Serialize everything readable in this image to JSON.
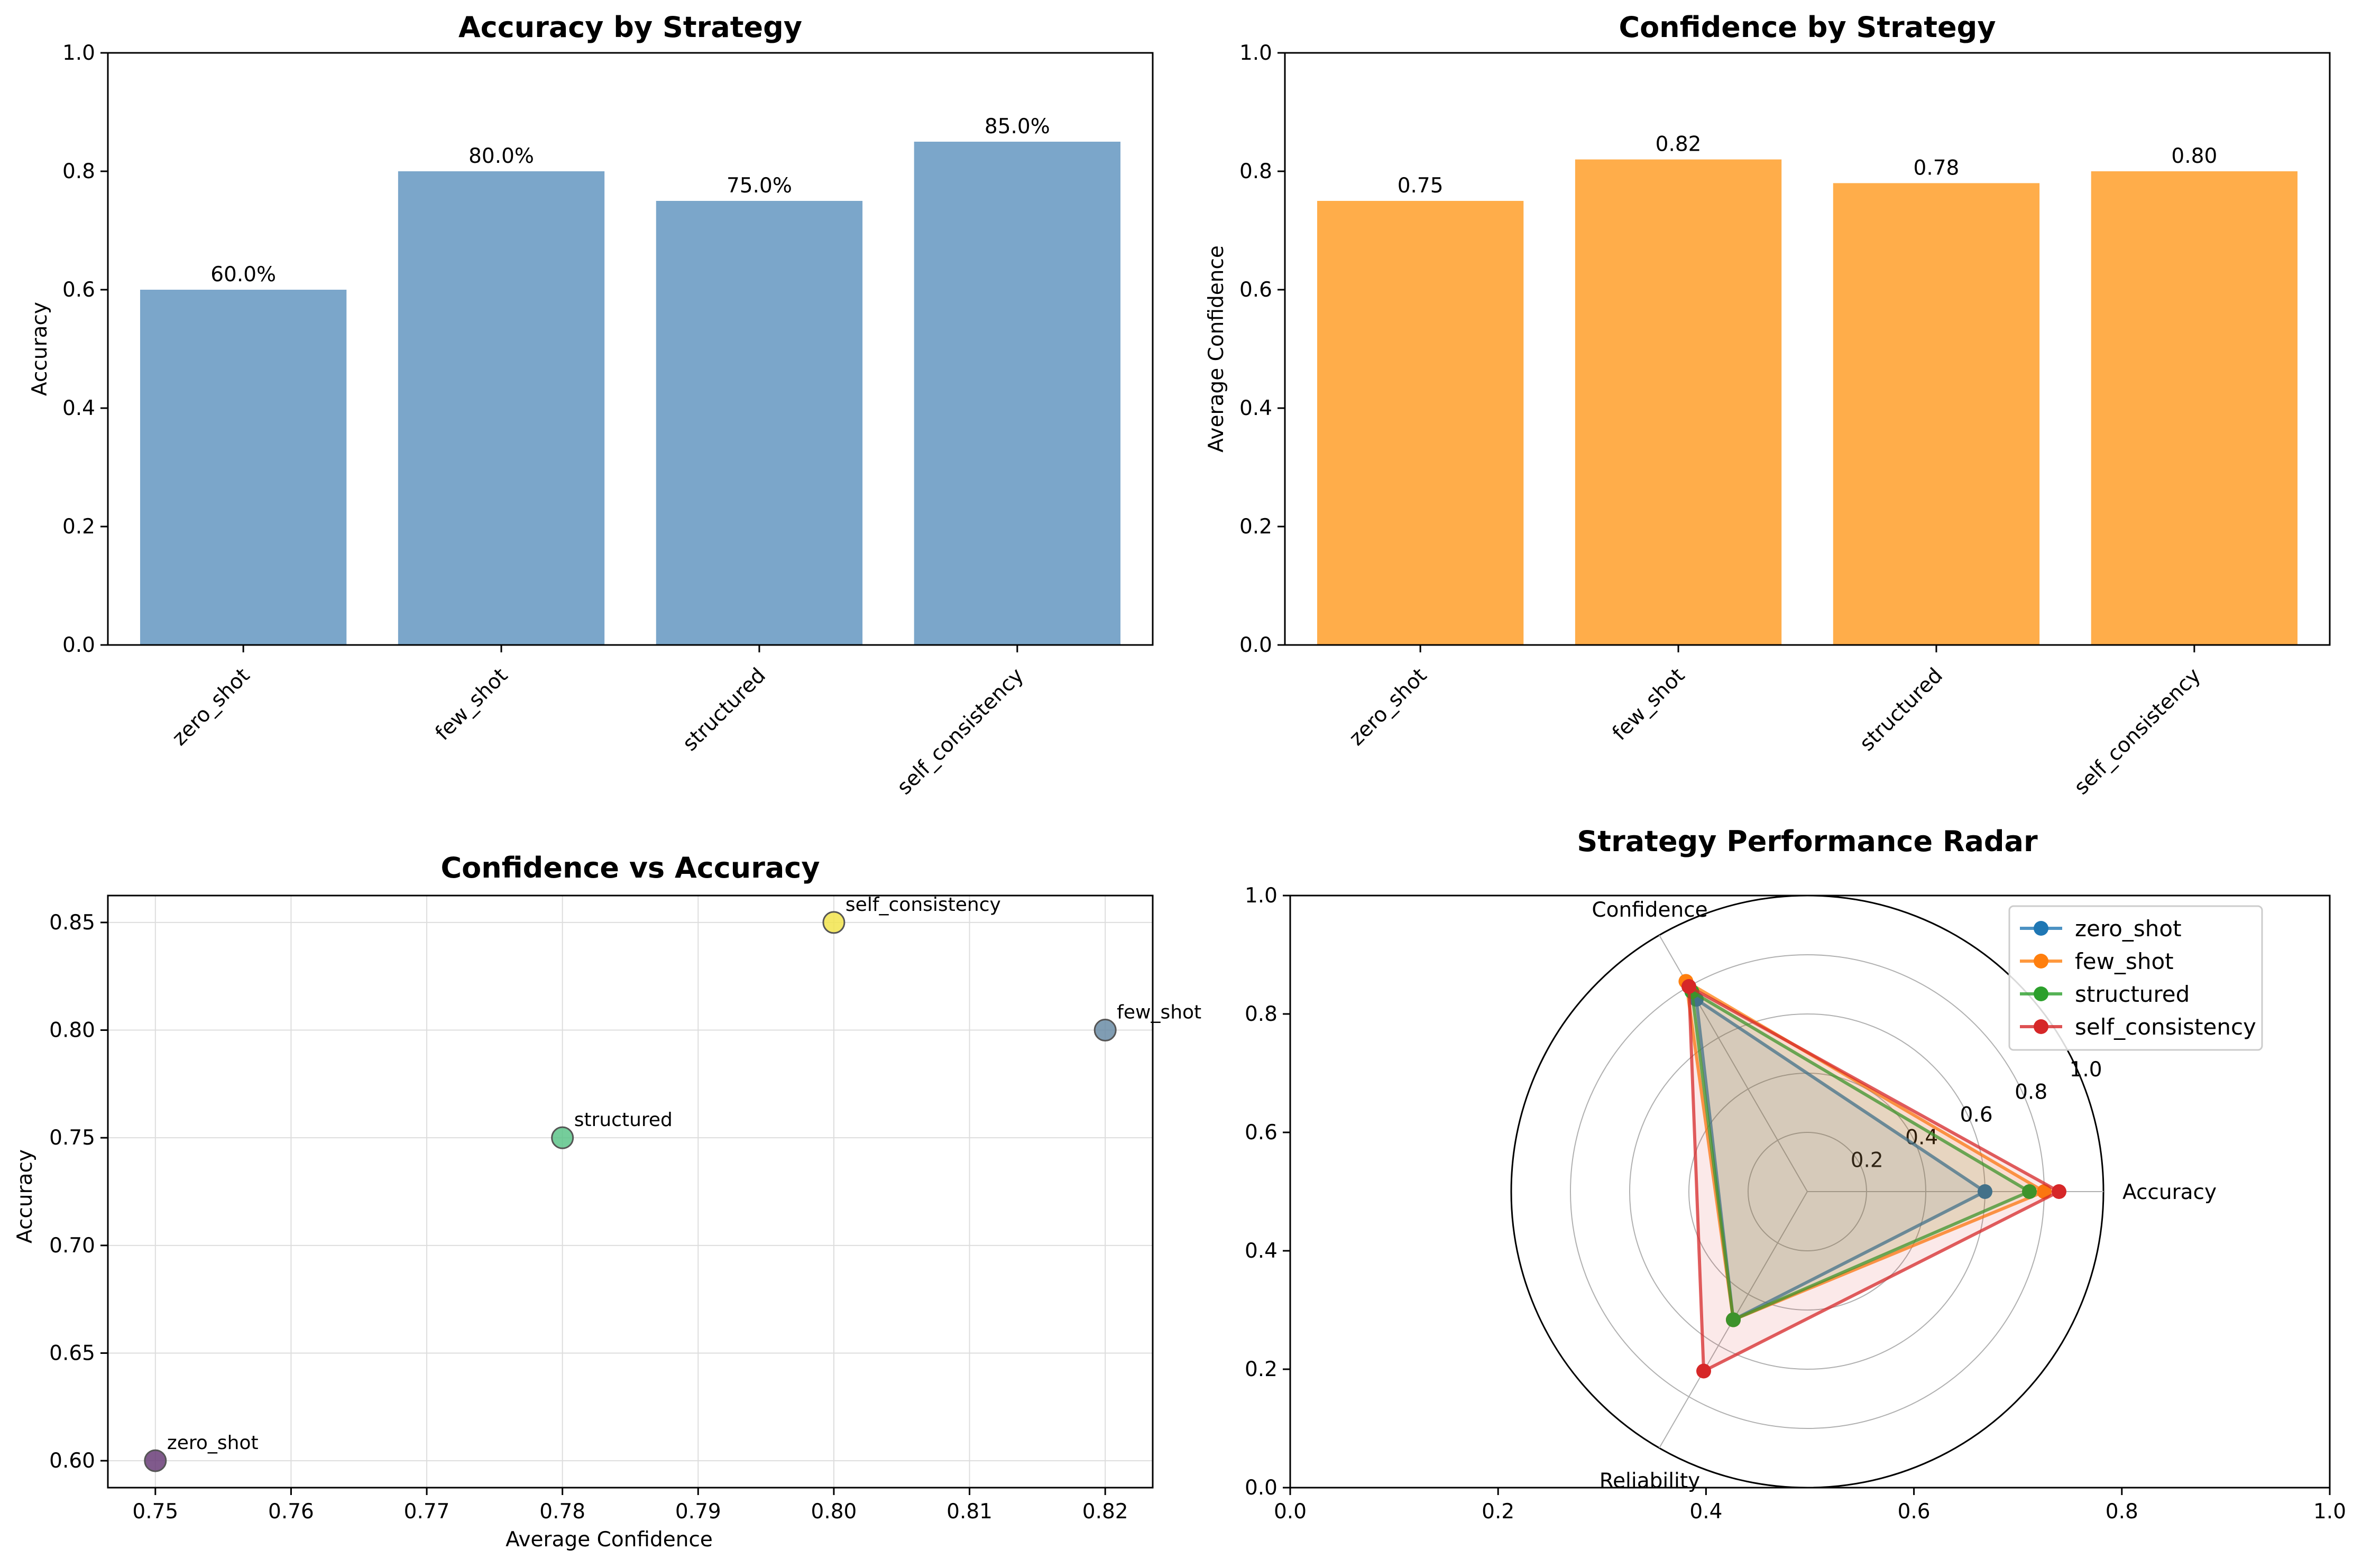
{
  "chart_data": [
    {
      "type": "bar",
      "title": "Accuracy by Strategy",
      "xlabel": "",
      "ylabel": "Accuracy",
      "categories": [
        "zero_shot",
        "few_shot",
        "structured",
        "self_consistency"
      ],
      "values": [
        0.6,
        0.8,
        0.75,
        0.85
      ],
      "value_labels": [
        "60.0%",
        "80.0%",
        "75.0%",
        "85.0%"
      ],
      "ylim": [
        0,
        1.0
      ],
      "yticks": [
        "0.0",
        "0.2",
        "0.4",
        "0.6",
        "0.8",
        "1.0"
      ],
      "color": "#7ba6ca",
      "grid": false
    },
    {
      "type": "bar",
      "title": "Confidence by Strategy",
      "xlabel": "",
      "ylabel": "Average Confidence",
      "categories": [
        "zero_shot",
        "few_shot",
        "structured",
        "self_consistency"
      ],
      "values": [
        0.75,
        0.82,
        0.78,
        0.8
      ],
      "value_labels": [
        "0.75",
        "0.82",
        "0.78",
        "0.80"
      ],
      "ylim": [
        0,
        1.0
      ],
      "yticks": [
        "0.0",
        "0.2",
        "0.4",
        "0.6",
        "0.8",
        "1.0"
      ],
      "color": "#ffad4a",
      "grid": false
    },
    {
      "type": "scatter",
      "title": "Confidence vs Accuracy",
      "xlabel": "Average Confidence",
      "ylabel": "Accuracy",
      "points": [
        {
          "label": "zero_shot",
          "x": 0.75,
          "y": 0.6,
          "color": "#6a3d78"
        },
        {
          "label": "few_shot",
          "x": 0.82,
          "y": 0.8,
          "color": "#6a8ca6"
        },
        {
          "label": "structured",
          "x": 0.78,
          "y": 0.75,
          "color": "#5dc48a"
        },
        {
          "label": "self_consistency",
          "x": 0.8,
          "y": 0.85,
          "color": "#f2e44d"
        }
      ],
      "xlim": [
        0.7465,
        0.8235
      ],
      "ylim": [
        0.5875,
        0.8625
      ],
      "xticks": [
        "0.75",
        "0.76",
        "0.77",
        "0.78",
        "0.79",
        "0.80",
        "0.81",
        "0.82"
      ],
      "yticks": [
        "0.60",
        "0.65",
        "0.70",
        "0.75",
        "0.80",
        "0.85"
      ],
      "grid": true
    },
    {
      "type": "radar",
      "title": "Strategy Performance Radar",
      "axes": [
        "Accuracy",
        "Confidence",
        "Reliability"
      ],
      "rlim": [
        0,
        1.0
      ],
      "rticks": [
        "0.2",
        "0.4",
        "0.6",
        "0.8",
        "1.0"
      ],
      "frame_ticks": [
        "0.0",
        "0.2",
        "0.4",
        "0.6",
        "0.8",
        "1.0"
      ],
      "series": [
        {
          "name": "zero_shot",
          "values": [
            0.6,
            0.75,
            0.5
          ],
          "color": "#1f77b4"
        },
        {
          "name": "few_shot",
          "values": [
            0.8,
            0.82,
            0.5
          ],
          "color": "#ff7f0e"
        },
        {
          "name": "structured",
          "values": [
            0.75,
            0.78,
            0.5
          ],
          "color": "#2ca02c"
        },
        {
          "name": "self_consistency",
          "values": [
            0.85,
            0.8,
            0.7
          ],
          "color": "#d62728"
        }
      ],
      "legend": "top-right"
    }
  ]
}
